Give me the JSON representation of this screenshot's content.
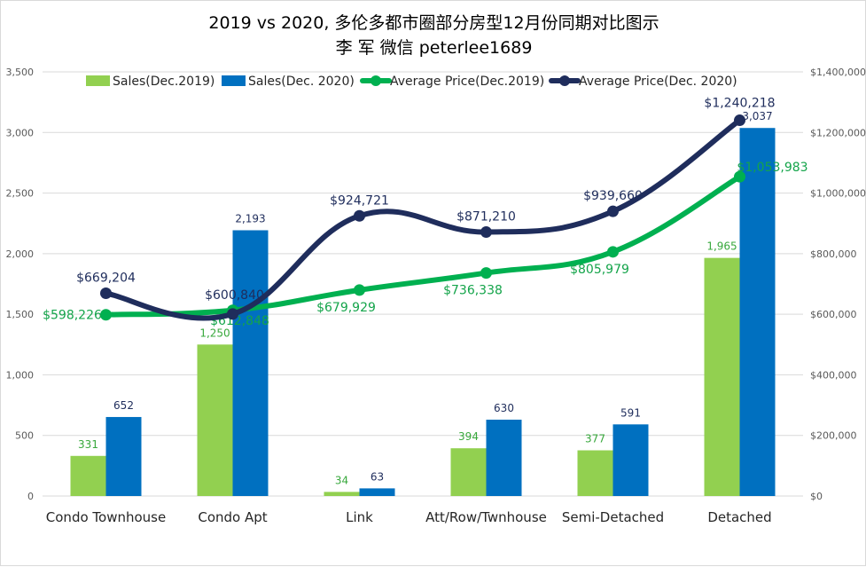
{
  "chart_data": {
    "type": "bar",
    "title": "2019 vs 2020, 多伦多都市圈部分房型12月份同期对比图示",
    "subtitle": "李 军   微信  peterlee1689",
    "categories": [
      "Condo Townhouse",
      "Condo Apt",
      "Link",
      "Att/Row/Twnhouse",
      "Semi-Detached",
      "Detached"
    ],
    "series": [
      {
        "name": "Sales(Dec.2019)",
        "kind": "bar",
        "axis": "left",
        "color": "#92d050",
        "values": [
          331,
          1250,
          34,
          394,
          377,
          1965
        ],
        "labels": [
          "331",
          "1,250",
          "34",
          "394",
          "377",
          "1,965"
        ]
      },
      {
        "name": "Sales(Dec. 2020)",
        "kind": "bar",
        "axis": "left",
        "color": "#0070c0",
        "values": [
          652,
          2193,
          63,
          630,
          591,
          3037
        ],
        "labels": [
          "652",
          "2,193",
          "63",
          "630",
          "591",
          "3,037"
        ]
      },
      {
        "name": "Average Price(Dec.2019)",
        "kind": "line",
        "axis": "right",
        "color": "#00b050",
        "values": [
          598226,
          612848,
          679929,
          736338,
          805979,
          1053983
        ],
        "labels": [
          "$598,226",
          "$612,848",
          "$679,929",
          "$736,338",
          "$805,979",
          "$1,053,983"
        ]
      },
      {
        "name": "Average Price(Dec. 2020)",
        "kind": "line",
        "axis": "right",
        "color": "#1f2d5c",
        "values": [
          669204,
          600840,
          924721,
          871210,
          939660,
          1240218
        ],
        "labels": [
          "$669,204",
          "$600,840",
          "$924,721",
          "$871,210",
          "$939,660",
          "$1,240,218"
        ]
      }
    ],
    "y_left": {
      "min": 0,
      "max": 3500,
      "ticks": [
        "0",
        "500",
        "1,000",
        "1,500",
        "2,000",
        "2,500",
        "3,000",
        "3,500"
      ]
    },
    "y_right": {
      "min": 0,
      "max": 1400000,
      "ticks": [
        "$0",
        "$200,000",
        "$400,000",
        "$600,000",
        "$800,000",
        "$1,000,000",
        "$1,200,000",
        "$1,400,000"
      ]
    },
    "grid": true,
    "legend": "top"
  }
}
